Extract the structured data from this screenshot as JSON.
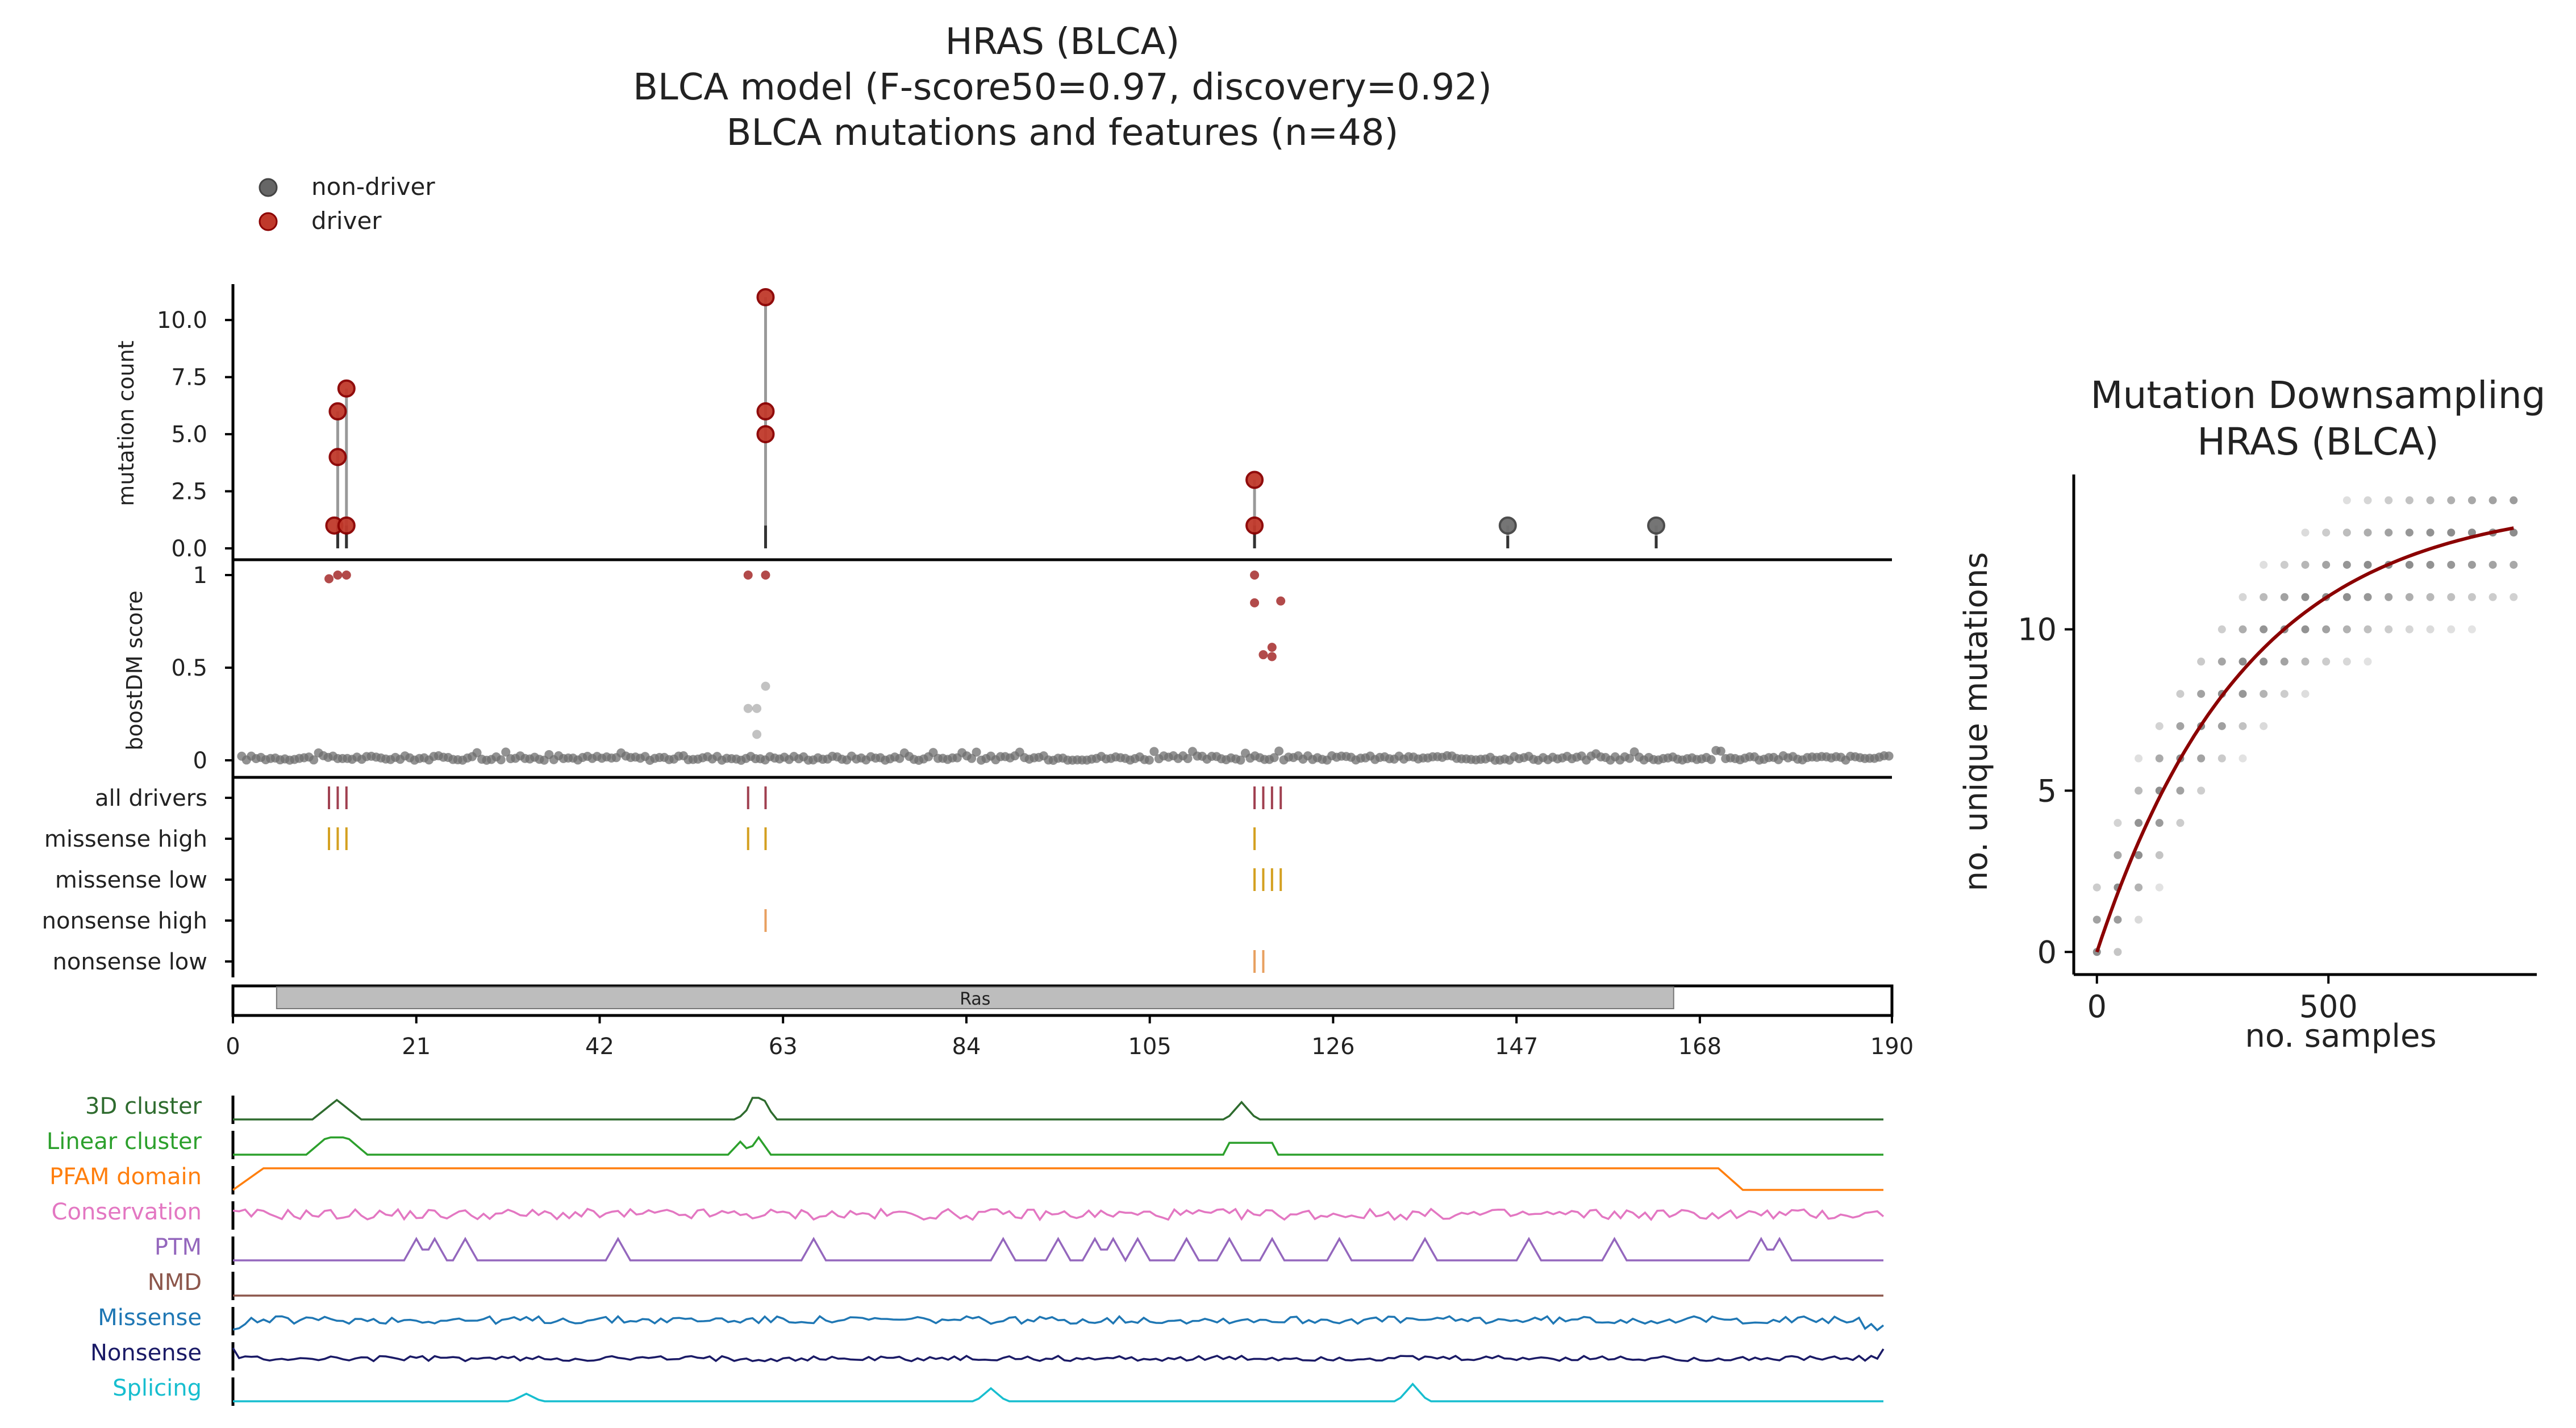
{
  "title_lines": [
    "HRAS (BLCA)",
    "BLCA model (F-score50=0.97, discovery=0.92)",
    "BLCA mutations and features (n=48)"
  ],
  "colors": {
    "driver": "#b22222",
    "non_driver": "#666666",
    "driver_tick": "#a04050",
    "missense_tick": "#d4a020",
    "nonsense_tick": "#e8a060",
    "domain_fill": "#bdbdbd",
    "downsampling_curve": "#8b0000"
  },
  "chart_data": [
    {
      "type": "scatter",
      "name": "lollipop",
      "legend": [
        {
          "label": "non-driver",
          "color": "#666666"
        },
        {
          "label": "driver",
          "color": "#b22222"
        }
      ],
      "legend_position": "top-left",
      "ylabel": "mutation count",
      "yticks": [
        "0.0",
        "2.5",
        "5.0",
        "7.5",
        "10.0"
      ],
      "ylim": [
        0,
        11.5
      ],
      "xlim": [
        0,
        190
      ],
      "stems": [
        {
          "pos": 12,
          "max": 6
        },
        {
          "pos": 13,
          "max": 7
        },
        {
          "pos": 61,
          "max": 11
        },
        {
          "pos": 117,
          "max": 3
        },
        {
          "pos": 146,
          "max": 1
        },
        {
          "pos": 163,
          "max": 1
        }
      ],
      "points": [
        {
          "pos": 12,
          "count": 1,
          "driver": true
        },
        {
          "pos": 12,
          "count": 4,
          "driver": true
        },
        {
          "pos": 12,
          "count": 6,
          "driver": true
        },
        {
          "pos": 13,
          "count": 1,
          "driver": true
        },
        {
          "pos": 13,
          "count": 7,
          "driver": true
        },
        {
          "pos": 61,
          "count": 5,
          "driver": true
        },
        {
          "pos": 61,
          "count": 6,
          "driver": true
        },
        {
          "pos": 61,
          "count": 11,
          "driver": true
        },
        {
          "pos": 117,
          "count": 1,
          "driver": true
        },
        {
          "pos": 117,
          "count": 3,
          "driver": true
        },
        {
          "pos": 146,
          "count": 1,
          "driver": false
        },
        {
          "pos": 163,
          "count": 1,
          "driver": false
        }
      ]
    },
    {
      "type": "scatter",
      "name": "boostdm",
      "ylabel": "boostDM score",
      "yticks": [
        "0",
        "0.5",
        "1"
      ],
      "ylim": [
        0,
        1
      ],
      "baseline_noise_positions": "1-190",
      "high_points": [
        {
          "pos": 11,
          "score": 0.98
        },
        {
          "pos": 12,
          "score": 1.0
        },
        {
          "pos": 13,
          "score": 1.0
        },
        {
          "pos": 59,
          "score": 1.0
        },
        {
          "pos": 61,
          "score": 1.0
        },
        {
          "pos": 117,
          "score": 1.0
        },
        {
          "pos": 117,
          "score": 0.85
        },
        {
          "pos": 120,
          "score": 0.86
        },
        {
          "pos": 119,
          "score": 0.61
        },
        {
          "pos": 118,
          "score": 0.57
        },
        {
          "pos": 119,
          "score": 0.56
        }
      ],
      "mid_points": [
        {
          "pos": 59,
          "score": 0.28
        },
        {
          "pos": 60,
          "score": 0.28
        },
        {
          "pos": 60,
          "score": 0.14
        },
        {
          "pos": 61,
          "score": 0.4
        }
      ]
    },
    {
      "type": "table",
      "name": "driver-tracks",
      "rows": [
        {
          "label": "all drivers",
          "positions": [
            11,
            12,
            13,
            59,
            61,
            117,
            118,
            119,
            120
          ]
        },
        {
          "label": "missense high",
          "positions": [
            11,
            12,
            13,
            59,
            61,
            117
          ]
        },
        {
          "label": "missense low",
          "positions": [
            117,
            118,
            119,
            120
          ]
        },
        {
          "label": "nonsense high",
          "positions": [
            61
          ]
        },
        {
          "label": "nonsense low",
          "positions": [
            117,
            118
          ]
        }
      ]
    },
    {
      "type": "bar",
      "name": "domain-axis",
      "domains": [
        {
          "label": "Ras",
          "start": 5,
          "end": 165
        }
      ],
      "xticks": [
        "0",
        "21",
        "42",
        "63",
        "84",
        "105",
        "126",
        "147",
        "168",
        "190"
      ],
      "xlim": [
        0,
        190
      ]
    },
    {
      "type": "line",
      "name": "features",
      "series": [
        {
          "name": "3D cluster",
          "color": "#2e6b2e"
        },
        {
          "name": "Linear cluster",
          "color": "#2ca02c"
        },
        {
          "name": "PFAM domain",
          "color": "#ff7f0e"
        },
        {
          "name": "Conservation",
          "color": "#e377c2"
        },
        {
          "name": "PTM",
          "color": "#9467bd"
        },
        {
          "name": "NMD",
          "color": "#8c564b"
        },
        {
          "name": "Missense",
          "color": "#1f77b4"
        },
        {
          "name": "Nonsense",
          "color": "#1a1a66"
        },
        {
          "name": "Splicing",
          "color": "#17becf"
        }
      ],
      "ptm_peaks": [
        30,
        33,
        38,
        63,
        95,
        126,
        135,
        141,
        144,
        148,
        156,
        163,
        170,
        181,
        195,
        212,
        226,
        250,
        253
      ]
    },
    {
      "type": "scatter",
      "name": "downsampling",
      "title_lines": [
        "Mutation Downsampling",
        "HRAS (BLCA)"
      ],
      "xlabel": "no. samples",
      "ylabel": "no. unique mutations",
      "xticks": [
        0,
        500
      ],
      "yticks": [
        0,
        5,
        10
      ],
      "xlim": [
        -50,
        950
      ],
      "ylim": [
        -0.7,
        14.8
      ],
      "curve_plateau": 14,
      "curve_rate": 0.0031,
      "samples_max": 900,
      "samples_step": 45
    }
  ]
}
